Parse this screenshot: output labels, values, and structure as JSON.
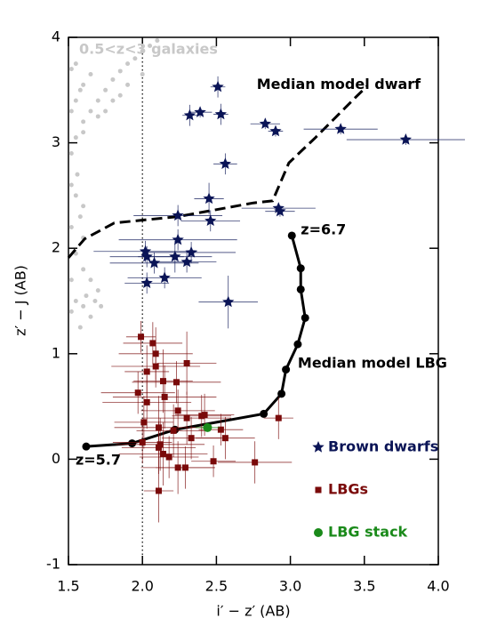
{
  "chart_data": {
    "type": "scatter",
    "xlabel": "i′ − z′ (AB)",
    "ylabel": "z′ − J (AB)",
    "xlim": [
      1.5,
      4.0
    ],
    "ylim": [
      -1,
      4
    ],
    "xticks": [
      {
        "value": 1.5,
        "label": "1.5"
      },
      {
        "value": 2.0,
        "label": "2.0"
      },
      {
        "value": 2.5,
        "label": "2.5"
      },
      {
        "value": 3.0,
        "label": "3.0"
      },
      {
        "value": 3.5,
        "label": "3.5"
      },
      {
        "value": 4.0,
        "label": "4.0"
      }
    ],
    "yticks": [
      -1,
      0,
      1,
      2,
      3,
      4
    ],
    "vline": 2.0,
    "legend": "lower right",
    "series": [
      {
        "name": "Brown dwarfs",
        "color": "#0a1456",
        "marker": "star",
        "x": [
          2.51,
          2.32,
          2.39,
          2.53,
          2.83,
          2.9,
          3.34,
          3.78,
          2.56,
          2.45,
          2.24,
          2.46,
          2.92,
          2.93,
          2.24,
          2.02,
          2.03,
          2.08,
          2.22,
          2.33,
          2.3,
          2.15,
          2.03,
          2.58
        ],
        "y": [
          3.53,
          3.26,
          3.29,
          3.27,
          3.18,
          3.11,
          3.13,
          3.03,
          2.8,
          2.47,
          2.31,
          2.26,
          2.38,
          2.35,
          2.08,
          1.97,
          1.92,
          1.86,
          1.92,
          1.96,
          1.87,
          1.72,
          1.67,
          1.49
        ],
        "xerr": [
          0.05,
          0.05,
          0.08,
          0.05,
          0.1,
          0.05,
          0.25,
          0.4,
          0.08,
          0.1,
          0.3,
          0.2,
          0.25,
          0.1,
          0.4,
          0.35,
          0.25,
          0.3,
          0.25,
          0.3,
          0.2,
          0.25,
          0.15,
          0.2
        ],
        "yerr": [
          0.1,
          0.1,
          0.05,
          0.1,
          0.05,
          0.05,
          0.05,
          0.05,
          0.1,
          0.15,
          0.1,
          0.1,
          0.05,
          0.05,
          0.1,
          0.1,
          0.1,
          0.1,
          0.15,
          0.1,
          0.1,
          0.1,
          0.1,
          0.25
        ]
      },
      {
        "name": "LBGs",
        "color": "#7a0a0a",
        "marker": "square",
        "x": [
          1.99,
          2.07,
          2.09,
          2.09,
          2.3,
          2.03,
          2.23,
          2.14,
          1.97,
          2.03,
          2.15,
          2.24,
          2.3,
          2.4,
          2.42,
          2.01,
          2.11,
          2.21,
          2.33,
          2.53,
          2.56,
          2.92,
          2.11,
          2.14,
          2.18,
          2.24,
          2.29,
          2.48,
          2.76,
          2.11,
          2.12,
          2.0
        ],
        "y": [
          1.16,
          1.1,
          1.0,
          0.88,
          0.91,
          0.83,
          0.73,
          0.74,
          0.63,
          0.54,
          0.59,
          0.46,
          0.39,
          0.41,
          0.42,
          0.35,
          0.3,
          0.27,
          0.2,
          0.28,
          0.2,
          0.39,
          0.11,
          0.05,
          0.02,
          -0.08,
          -0.08,
          -0.02,
          -0.03,
          -0.3,
          0.14,
          0.16
        ],
        "xerr": [
          0.1,
          0.2,
          0.25,
          0.3,
          0.2,
          0.15,
          0.3,
          0.2,
          0.25,
          0.3,
          0.35,
          0.25,
          0.3,
          0.2,
          0.2,
          0.2,
          0.3,
          0.25,
          0.2,
          0.15,
          0.2,
          0.1,
          0.25,
          0.3,
          0.2,
          0.25,
          0.2,
          0.15,
          0.25,
          0.1,
          0.3,
          0.2
        ],
        "yerr": [
          0.15,
          0.2,
          0.25,
          0.2,
          0.3,
          0.25,
          0.2,
          0.3,
          0.2,
          0.25,
          0.3,
          0.2,
          0.25,
          0.2,
          0.2,
          0.25,
          0.3,
          0.25,
          0.2,
          0.15,
          0.2,
          0.2,
          0.25,
          0.3,
          0.2,
          0.25,
          0.2,
          0.15,
          0.2,
          0.3,
          0.25,
          0.2
        ]
      },
      {
        "name": "LBG stack",
        "color": "#1a8a1a",
        "marker": "circle",
        "x": [
          2.44
        ],
        "y": [
          0.3
        ],
        "xerr": [
          0.08
        ],
        "yerr": [
          0.03
        ]
      }
    ],
    "galaxies": {
      "label": "0.5<z<3 galaxies",
      "color": "#c8c8c8",
      "x": [
        1.52,
        1.55,
        1.6,
        1.65,
        1.7,
        1.75,
        1.8,
        1.85,
        1.9,
        1.95,
        2.0,
        2.05,
        2.1,
        1.55,
        1.6,
        1.65,
        1.52,
        1.55,
        1.6,
        1.7,
        1.8,
        1.9,
        2.0,
        1.52,
        1.58,
        1.75,
        1.85,
        1.52,
        1.55,
        1.58,
        1.6,
        1.52,
        1.55,
        1.6,
        1.65,
        1.7,
        1.52,
        1.55,
        1.6,
        1.65,
        1.58,
        1.52,
        1.62,
        1.68,
        1.72,
        1.6,
        1.56
      ],
      "y": [
        2.9,
        3.05,
        3.2,
        3.3,
        3.4,
        3.5,
        3.6,
        3.68,
        3.75,
        3.8,
        3.87,
        3.92,
        3.97,
        3.4,
        3.55,
        3.65,
        3.7,
        3.75,
        3.1,
        3.25,
        3.4,
        3.55,
        3.65,
        3.3,
        3.5,
        3.3,
        3.45,
        2.6,
        2.5,
        2.3,
        2.1,
        2.2,
        1.95,
        1.8,
        1.7,
        1.6,
        1.7,
        1.5,
        1.45,
        1.35,
        1.25,
        1.4,
        1.55,
        1.5,
        1.45,
        2.4,
        2.7
      ]
    },
    "models": [
      {
        "label": "Median model dwarf",
        "color": "#000000",
        "dashed": true,
        "markers": false,
        "x": [
          1.5,
          1.61,
          1.81,
          2.24,
          2.75,
          2.88,
          2.99,
          3.17,
          3.44,
          3.52
        ],
        "y": [
          1.91,
          2.09,
          2.24,
          2.3,
          2.43,
          2.45,
          2.81,
          3.05,
          3.43,
          3.54
        ]
      },
      {
        "label": "Median model LBG",
        "color": "#000000",
        "dashed": false,
        "markers": true,
        "start_label": "z=5.7",
        "end_label": "z=6.7",
        "x": [
          1.62,
          1.93,
          2.22,
          2.82,
          2.94,
          2.97,
          3.05,
          3.1,
          3.07,
          3.07,
          3.01
        ],
        "y": [
          0.12,
          0.15,
          0.28,
          0.43,
          0.62,
          0.85,
          1.09,
          1.34,
          1.61,
          1.81,
          2.12
        ]
      }
    ]
  }
}
